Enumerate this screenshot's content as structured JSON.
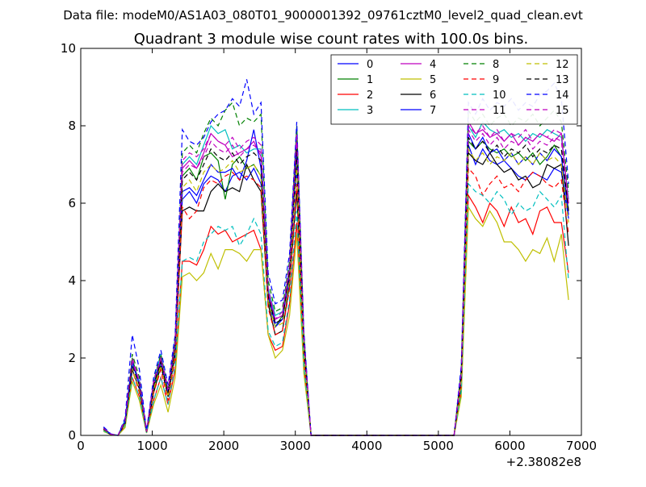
{
  "header": {
    "data_file_label": "Data file: modeM0/AS1A03_080T01_9000001392_09761cztM0_level2_quad_clean.evt"
  },
  "chart_data": {
    "type": "line",
    "title": "Quadrant 3 module wise count rates with 100.0s bins.",
    "xlabel": "",
    "ylabel": "",
    "x_offset_label": "+2.38082e8",
    "xlim": [
      0,
      7000
    ],
    "ylim": [
      0,
      10
    ],
    "x_ticks": [
      0,
      1000,
      2000,
      3000,
      4000,
      5000,
      6000,
      7000
    ],
    "y_ticks": [
      0,
      2,
      4,
      6,
      8,
      10
    ],
    "grid": false,
    "legend_position": "top-right",
    "legend_columns": 4,
    "x": [
      320,
      420,
      520,
      620,
      720,
      820,
      920,
      1020,
      1120,
      1220,
      1320,
      1420,
      1520,
      1620,
      1720,
      1820,
      1920,
      2020,
      2120,
      2220,
      2320,
      2420,
      2520,
      2620,
      2720,
      2820,
      2920,
      3020,
      3120,
      3220,
      3320,
      4500,
      5220,
      5320,
      5420,
      5520,
      5620,
      5720,
      5820,
      5920,
      6020,
      6120,
      6220,
      6320,
      6420,
      6520,
      6620,
      6720,
      6820
    ],
    "series": [
      {
        "name": "0",
        "color": "#0000ff",
        "dash": "solid",
        "values": [
          0.2,
          0.03,
          0.0,
          0.4,
          1.9,
          1.4,
          0.1,
          1.3,
          2.0,
          1.1,
          2.4,
          6.1,
          6.3,
          6.0,
          6.5,
          6.7,
          6.6,
          6.3,
          6.7,
          6.8,
          6.6,
          6.9,
          6.5,
          3.7,
          2.9,
          3.0,
          4.2,
          6.9,
          2.3,
          0,
          0,
          0,
          0,
          1.4,
          7.5,
          7.0,
          7.4,
          7.1,
          7.0,
          7.1,
          6.9,
          6.7,
          6.6,
          6.8,
          6.7,
          6.6,
          6.9,
          6.8,
          5.6
        ]
      },
      {
        "name": "1",
        "color": "#008000",
        "dash": "solid",
        "values": [
          0.15,
          0.02,
          0.0,
          0.3,
          2.0,
          1.3,
          0.1,
          1.2,
          1.9,
          1.0,
          2.2,
          6.7,
          6.9,
          6.6,
          7.2,
          7.3,
          7.1,
          6.1,
          7.0,
          7.2,
          6.9,
          7.0,
          6.7,
          3.5,
          2.8,
          3.1,
          4.2,
          7.2,
          2.4,
          0,
          0,
          0,
          0,
          1.5,
          7.6,
          7.4,
          7.6,
          7.4,
          7.3,
          7.4,
          7.2,
          7.3,
          7.1,
          7.3,
          7.0,
          7.2,
          7.5,
          7.2,
          5.8
        ]
      },
      {
        "name": "2",
        "color": "#ff0000",
        "dash": "solid",
        "values": [
          0.12,
          0.02,
          0.0,
          0.25,
          1.5,
          1.0,
          0.08,
          0.9,
          1.5,
          0.8,
          1.7,
          4.5,
          4.5,
          4.4,
          4.8,
          5.4,
          5.2,
          5.3,
          5.0,
          5.1,
          5.2,
          5.3,
          4.8,
          2.6,
          2.2,
          2.3,
          3.4,
          5.5,
          1.8,
          0,
          0,
          0,
          0,
          1.1,
          6.2,
          5.9,
          5.5,
          6.0,
          5.8,
          5.4,
          5.9,
          5.5,
          5.6,
          5.2,
          5.8,
          5.9,
          5.5,
          5.5,
          4.2
        ]
      },
      {
        "name": "3",
        "color": "#00bfbf",
        "dash": "solid",
        "values": [
          0.18,
          0.03,
          0.0,
          0.4,
          1.8,
          1.4,
          0.1,
          1.4,
          2.1,
          1.1,
          2.5,
          7.0,
          7.2,
          7.0,
          7.5,
          8.0,
          7.8,
          7.9,
          7.4,
          7.5,
          7.3,
          7.4,
          7.4,
          3.8,
          3.1,
          3.2,
          4.4,
          7.9,
          2.5,
          0,
          0,
          0,
          0,
          1.6,
          8.0,
          7.7,
          8.1,
          7.9,
          7.8,
          7.9,
          7.7,
          7.8,
          7.6,
          7.8,
          7.7,
          7.9,
          7.8,
          7.7,
          6.1
        ]
      },
      {
        "name": "4",
        "color": "#bf00bf",
        "dash": "solid",
        "values": [
          0.17,
          0.03,
          0.0,
          0.35,
          1.9,
          1.3,
          0.1,
          1.3,
          2.0,
          1.1,
          2.4,
          6.9,
          7.1,
          6.9,
          7.3,
          7.8,
          7.6,
          7.5,
          7.2,
          7.3,
          7.4,
          7.6,
          7.2,
          3.7,
          3.0,
          3.1,
          4.3,
          7.7,
          2.4,
          0,
          0,
          0,
          0,
          1.55,
          8.1,
          7.8,
          7.9,
          7.7,
          7.8,
          7.6,
          7.8,
          7.5,
          7.7,
          7.6,
          7.8,
          7.7,
          7.6,
          7.8,
          6.0
        ]
      },
      {
        "name": "5",
        "color": "#bfbf00",
        "dash": "solid",
        "values": [
          0.1,
          0.02,
          0.0,
          0.2,
          1.4,
          0.9,
          0.06,
          0.8,
          1.3,
          0.6,
          1.5,
          4.1,
          4.2,
          4.0,
          4.2,
          4.7,
          4.3,
          4.8,
          4.8,
          4.7,
          4.5,
          4.8,
          4.8,
          2.6,
          2.0,
          2.2,
          3.1,
          5.2,
          1.6,
          0,
          0,
          0,
          0,
          1.0,
          5.9,
          5.6,
          5.4,
          5.8,
          5.5,
          5.0,
          5.0,
          4.8,
          4.5,
          4.8,
          4.7,
          5.1,
          4.5,
          5.2,
          3.5
        ]
      },
      {
        "name": "6",
        "color": "#000000",
        "dash": "solid",
        "values": [
          0.14,
          0.02,
          0.0,
          0.3,
          1.7,
          1.2,
          0.08,
          1.1,
          1.8,
          1.0,
          2.1,
          5.8,
          5.9,
          5.8,
          5.8,
          6.3,
          6.5,
          6.3,
          6.4,
          6.3,
          7.0,
          6.6,
          6.3,
          3.4,
          2.6,
          2.7,
          3.9,
          6.3,
          2.2,
          0,
          0,
          0,
          0,
          1.3,
          7.3,
          7.1,
          7.0,
          7.3,
          7.0,
          6.8,
          6.9,
          6.6,
          6.7,
          6.4,
          6.5,
          7.0,
          6.9,
          7.0,
          4.9
        ]
      },
      {
        "name": "7",
        "color": "#0000ff",
        "dash": "solid",
        "values": [
          0.16,
          0.03,
          0.0,
          0.35,
          1.9,
          1.3,
          0.09,
          1.3,
          1.9,
          1.1,
          2.3,
          6.3,
          6.4,
          6.2,
          6.6,
          7.0,
          6.8,
          6.8,
          6.9,
          6.6,
          7.1,
          7.9,
          6.9,
          3.6,
          2.8,
          3.0,
          4.1,
          7.4,
          2.3,
          0,
          0,
          0,
          0,
          1.5,
          7.8,
          7.4,
          7.7,
          7.3,
          7.4,
          7.1,
          7.3,
          7.0,
          7.2,
          7.0,
          7.3,
          7.1,
          7.4,
          7.2,
          5.7
        ]
      },
      {
        "name": "8",
        "color": "#008000",
        "dash": "dashed",
        "values": [
          0.19,
          0.03,
          0.0,
          0.4,
          2.1,
          1.5,
          0.11,
          1.4,
          2.1,
          1.2,
          2.5,
          7.3,
          7.5,
          7.3,
          7.8,
          8.2,
          8.0,
          8.4,
          8.6,
          8.0,
          8.2,
          8.1,
          8.3,
          4.0,
          3.2,
          3.3,
          4.5,
          8.0,
          2.6,
          0,
          0,
          0,
          0,
          1.7,
          8.4,
          8.1,
          8.3,
          8.0,
          8.2,
          8.3,
          8.0,
          8.2,
          8.1,
          8.3,
          8.0,
          8.2,
          8.4,
          8.1,
          6.3
        ]
      },
      {
        "name": "9",
        "color": "#ff0000",
        "dash": "dashed",
        "values": [
          0.14,
          0.02,
          0.0,
          0.3,
          1.7,
          1.1,
          0.08,
          1.1,
          1.7,
          0.9,
          2.0,
          5.9,
          5.6,
          5.8,
          6.4,
          6.6,
          6.5,
          6.7,
          6.8,
          6.6,
          6.7,
          6.6,
          6.4,
          3.3,
          2.6,
          2.7,
          3.8,
          6.5,
          2.1,
          0,
          0,
          0,
          0,
          1.3,
          6.9,
          6.7,
          6.2,
          6.5,
          6.7,
          6.4,
          6.5,
          6.3,
          6.6,
          6.8,
          6.7,
          6.5,
          6.4,
          6.6,
          5.2
        ]
      },
      {
        "name": "10",
        "color": "#00bfbf",
        "dash": "dashed",
        "values": [
          0.12,
          0.02,
          0.0,
          0.26,
          1.5,
          1.0,
          0.07,
          0.9,
          1.5,
          0.8,
          1.8,
          4.5,
          4.6,
          4.5,
          5.0,
          5.2,
          5.4,
          5.3,
          5.4,
          4.9,
          5.2,
          5.6,
          5.2,
          2.7,
          2.3,
          2.4,
          3.5,
          5.8,
          1.8,
          0,
          0,
          0,
          0,
          1.15,
          6.5,
          6.3,
          6.2,
          6.0,
          6.3,
          6.1,
          5.7,
          6.0,
          5.8,
          5.9,
          6.3,
          6.1,
          5.9,
          6.2,
          4.0
        ]
      },
      {
        "name": "11",
        "color": "#bf00bf",
        "dash": "dashed",
        "values": [
          0.17,
          0.03,
          0.0,
          0.36,
          1.9,
          1.4,
          0.1,
          1.3,
          2.0,
          1.1,
          2.4,
          6.8,
          7.0,
          6.9,
          7.2,
          7.6,
          7.4,
          7.3,
          7.5,
          7.2,
          7.4,
          7.5,
          7.3,
          3.7,
          3.0,
          3.1,
          4.3,
          7.6,
          2.4,
          0,
          0,
          0,
          0,
          1.55,
          7.9,
          7.6,
          7.8,
          7.5,
          7.7,
          7.4,
          7.6,
          7.5,
          7.7,
          7.4,
          7.6,
          7.5,
          7.7,
          7.6,
          5.9
        ]
      },
      {
        "name": "12",
        "color": "#bfbf00",
        "dash": "dashed",
        "values": [
          0.15,
          0.02,
          0.0,
          0.3,
          1.7,
          1.2,
          0.09,
          1.2,
          1.8,
          1.0,
          2.2,
          6.4,
          6.6,
          6.3,
          6.8,
          7.0,
          6.8,
          6.9,
          7.1,
          6.8,
          6.9,
          7.0,
          6.7,
          3.5,
          2.8,
          2.9,
          4.0,
          7.0,
          2.2,
          0,
          0,
          0,
          0,
          1.4,
          7.4,
          7.1,
          7.3,
          7.0,
          7.2,
          7.1,
          7.3,
          7.0,
          7.2,
          7.0,
          7.3,
          7.1,
          7.2,
          7.0,
          5.5
        ]
      },
      {
        "name": "13",
        "color": "#000000",
        "dash": "dashed",
        "values": [
          0.16,
          0.03,
          0.0,
          0.34,
          1.8,
          1.3,
          0.09,
          1.3,
          1.9,
          1.1,
          2.3,
          6.6,
          6.8,
          6.6,
          7.0,
          7.4,
          7.2,
          7.1,
          7.3,
          7.0,
          7.2,
          7.3,
          7.1,
          3.6,
          2.9,
          3.0,
          4.2,
          7.4,
          2.3,
          0,
          0,
          0,
          0,
          1.5,
          7.7,
          7.4,
          7.6,
          7.3,
          7.5,
          7.2,
          7.4,
          7.3,
          7.5,
          7.2,
          7.4,
          7.3,
          7.5,
          7.4,
          5.8
        ]
      },
      {
        "name": "14",
        "color": "#0000ff",
        "dash": "dashed",
        "values": [
          0.22,
          0.04,
          0.0,
          0.45,
          2.6,
          1.7,
          0.12,
          1.5,
          2.2,
          1.3,
          2.6,
          7.9,
          7.6,
          7.5,
          7.7,
          8.1,
          8.3,
          8.4,
          8.7,
          8.5,
          9.2,
          8.3,
          8.6,
          4.2,
          3.4,
          3.5,
          4.7,
          8.1,
          2.7,
          0,
          0,
          0,
          0,
          1.8,
          8.6,
          8.3,
          8.7,
          8.4,
          8.6,
          8.5,
          8.7,
          8.4,
          8.6,
          8.5,
          8.8,
          8.9,
          9.1,
          8.7,
          6.5
        ]
      },
      {
        "name": "15",
        "color": "#bf00bf",
        "dash": "dashed",
        "values": [
          0.18,
          0.03,
          0.0,
          0.38,
          2.0,
          1.4,
          0.1,
          1.4,
          2.0,
          1.2,
          2.4,
          7.1,
          7.3,
          7.2,
          7.4,
          7.8,
          7.6,
          7.5,
          7.7,
          7.4,
          7.6,
          7.7,
          7.5,
          3.8,
          3.0,
          3.2,
          4.4,
          7.8,
          2.5,
          0,
          0,
          0,
          0,
          1.6,
          8.0,
          7.8,
          8.0,
          7.7,
          7.9,
          7.6,
          7.8,
          7.7,
          7.9,
          7.6,
          7.8,
          7.7,
          7.9,
          7.8,
          6.0
        ]
      }
    ]
  }
}
